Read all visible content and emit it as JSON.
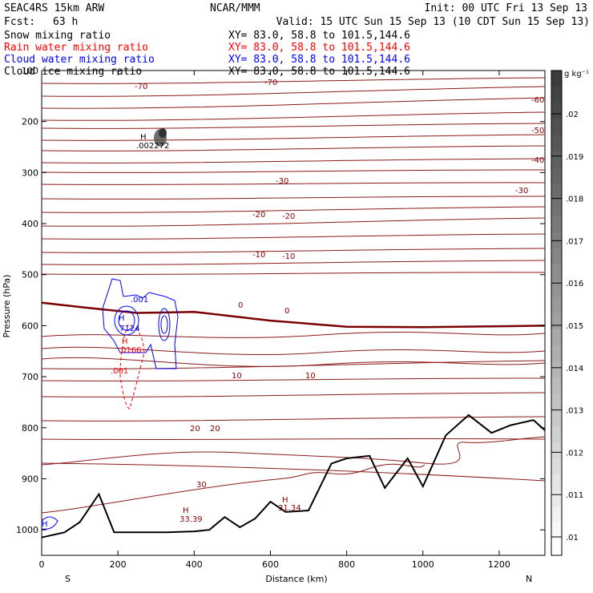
{
  "header": {
    "model": "SEAC4RS 15km ARW",
    "center": "NCAR/MMM",
    "init": "Init: 00 UTC Fri 13 Sep 13",
    "fcst_label": "Fcst:",
    "fcst_value": "63 h",
    "valid": "Valid: 15 UTC Sun 15 Sep 13 (10 CDT Sun 15 Sep 13)"
  },
  "legend": [
    {
      "label": "Snow mixing ratio",
      "xy": "XY=  83.0, 58.8 to 101.5,144.6",
      "color": "#000000"
    },
    {
      "label": "Rain water mixing ratio",
      "xy": "XY=  83.0, 58.8 to 101.5,144.6",
      "color": "#ff0000"
    },
    {
      "label": "Cloud water mixing ratio",
      "xy": "XY=  83.0, 58.8 to 101.5,144.6",
      "color": "#0000ff"
    },
    {
      "label": "Cloud ice mixing ratio",
      "xy": "XY=  83.0, 58.8 to 101.5,144.6",
      "color": "#000000"
    }
  ],
  "chart_data": {
    "type": "cross-section",
    "xlabel": "Distance (km)",
    "ylabel": "Pressure (hPa)",
    "xlim": [
      0,
      1320
    ],
    "ylim": [
      1050,
      100
    ],
    "x_ticks": [
      "0",
      "200",
      "400",
      "600",
      "800",
      "1000",
      "1200"
    ],
    "x_tick_values": [
      0,
      200,
      400,
      600,
      800,
      1000,
      1200
    ],
    "y_ticks": [
      "100",
      "200",
      "300",
      "400",
      "500",
      "600",
      "700",
      "800",
      "900",
      "1000"
    ],
    "y_tick_values": [
      100,
      200,
      300,
      400,
      500,
      600,
      700,
      800,
      900,
      1000
    ],
    "left_end_label": "S",
    "right_end_label": "N",
    "colorbar": {
      "unit": "g kg⁻¹",
      "ticks": [
        ".02",
        ".019",
        ".018",
        ".017",
        ".016",
        ".015",
        ".014",
        ".013",
        ".012",
        ".011",
        ".01"
      ]
    },
    "temperature_contour_labels": [
      "-70",
      "-70",
      "-60",
      "-50",
      "-40",
      "-30",
      "-30",
      "-20",
      "-20",
      "-10",
      "-10",
      "0",
      "0",
      "10",
      "10",
      "20",
      "20",
      "30"
    ],
    "maxima_labels": [
      {
        "marker": "H",
        "value": ".002272",
        "color": "#000000"
      },
      {
        "marker": "H",
        "value": ".7124",
        "color": "#0000ff"
      },
      {
        "marker": "H",
        "value": ".0166",
        "color": "#ff0000"
      },
      {
        "marker": "H",
        "value": "33.39",
        "color": "#8b0000"
      },
      {
        "marker": "H",
        "value": "31.34",
        "color": "#8b0000"
      }
    ],
    "cloud_water_labels": [
      ".001"
    ],
    "rain_labels": [
      ".001"
    ],
    "terrain_pressure": {
      "x": [
        0,
        60,
        100,
        150,
        190,
        260,
        330,
        400,
        440,
        480,
        520,
        560,
        600,
        640,
        700,
        760,
        800,
        860,
        900,
        960,
        1000,
        1060,
        1120,
        1180,
        1230,
        1290,
        1320
      ],
      "p": [
        1015,
        1005,
        985,
        930,
        1005,
        1005,
        1005,
        1003,
        1000,
        975,
        995,
        978,
        945,
        965,
        962,
        870,
        860,
        855,
        918,
        860,
        915,
        815,
        775,
        810,
        795,
        785,
        805
      ]
    },
    "thick_line_pressure": {
      "x": [
        0,
        120,
        250,
        400,
        600,
        800,
        1000,
        1320
      ],
      "p": [
        555,
        565,
        575,
        573,
        590,
        602,
        603,
        600
      ]
    }
  }
}
